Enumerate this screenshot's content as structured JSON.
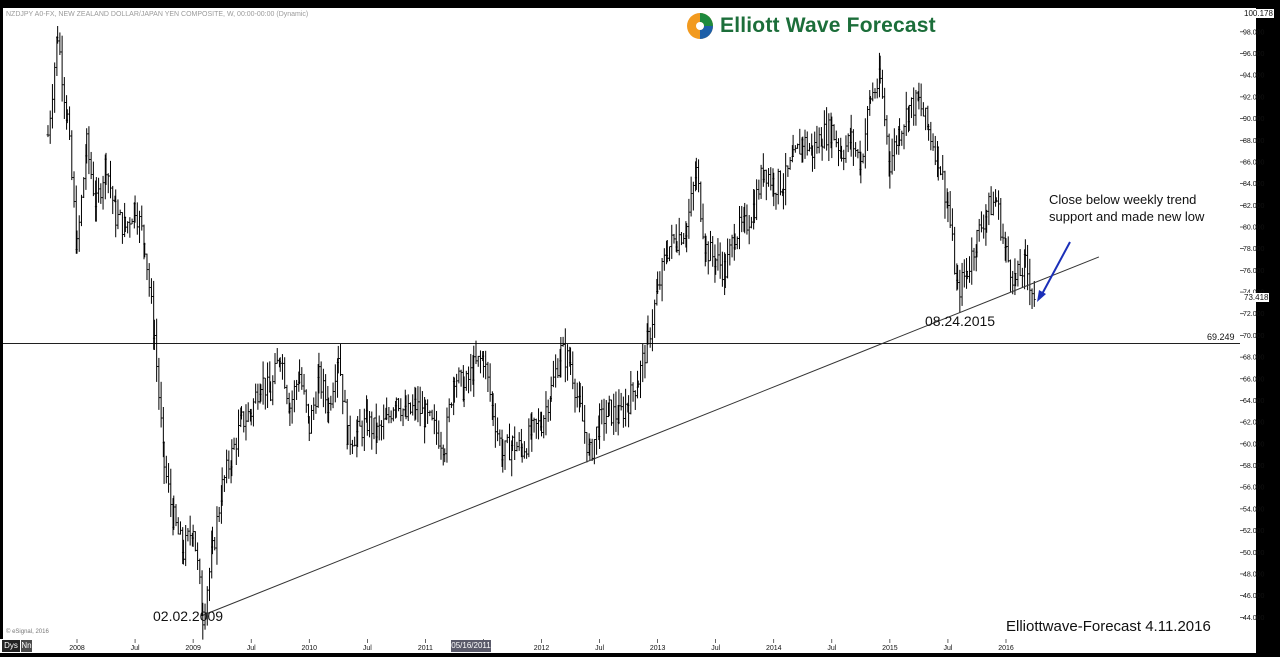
{
  "header": {
    "symbol_line": "NZDJPY A0-FX, NEW ZEALAND DOLLAR/JAPAN YEN COMPOSITE, W, 00:00-00:00 (Dynamic)",
    "brand_name": "Elliott Wave Forecast",
    "brand_colors": [
      "#1e8a3e",
      "#1d5fa8",
      "#f29a1f"
    ]
  },
  "footer": {
    "watermark": "© eSignal, 2016",
    "signature": "Elliottwave-Forecast 4.11.2016",
    "interval_tab": "Dys",
    "interval_btn": "Nn",
    "cursor_date": "05/16/2011"
  },
  "chart_data": {
    "type": "ohlc-bar",
    "title": "NZDJPY A0-FX, NEW ZEALAND DOLLAR/JAPAN YEN COMPOSITE, W, 00:00-00:00 (Dynamic)",
    "x_ticks": [
      "2008",
      "Jul",
      "2009",
      "Jul",
      "2010",
      "Jul",
      "2011",
      "Jul",
      "2012",
      "Jul",
      "2013",
      "Jul",
      "2014",
      "Jul",
      "2015",
      "Jul",
      "2016"
    ],
    "y_ticks": [
      "44.000",
      "46.000",
      "48.000",
      "50.000",
      "52.000",
      "54.000",
      "56.000",
      "58.000",
      "60.000",
      "62.000",
      "64.000",
      "66.000",
      "68.000",
      "70.000",
      "72.000",
      "74.000",
      "76.000",
      "78.000",
      "80.000",
      "82.000",
      "84.000",
      "86.000",
      "88.000",
      "90.000",
      "92.000",
      "94.000",
      "96.000",
      "98.000"
    ],
    "ylim": [
      42.0,
      100.2
    ],
    "last_price": "73.418",
    "top_price": "100.178",
    "horizontal_level": {
      "label": "69.249",
      "value": 69.249
    },
    "trendline": {
      "from": [
        "2009-02-02",
        44.2
      ],
      "to_label": "extended",
      "through": [
        "2015-08-24",
        72.3
      ]
    },
    "price_path_anchors": [
      [
        "2007-10",
        88.5
      ],
      [
        "2007-11",
        97.8
      ],
      [
        "2007-12",
        90.0
      ],
      [
        "2008-01",
        78.0
      ],
      [
        "2008-02",
        87.5
      ],
      [
        "2008-03",
        82.0
      ],
      [
        "2008-04",
        86.0
      ],
      [
        "2008-05",
        81.0
      ],
      [
        "2008-06",
        80.0
      ],
      [
        "2008-07",
        82.0
      ],
      [
        "2008-08",
        78.5
      ],
      [
        "2008-09",
        70.0
      ],
      [
        "2008-10",
        58.0
      ],
      [
        "2008-11",
        53.0
      ],
      [
        "2008-12",
        50.0
      ],
      [
        "2009-01",
        52.5
      ],
      [
        "2009-02",
        44.2
      ],
      [
        "2009-03",
        50.0
      ],
      [
        "2009-04",
        56.0
      ],
      [
        "2009-05",
        59.0
      ],
      [
        "2009-06",
        62.0
      ],
      [
        "2009-07",
        63.0
      ],
      [
        "2009-08",
        66.0
      ],
      [
        "2009-09",
        64.5
      ],
      [
        "2009-10",
        68.5
      ],
      [
        "2009-11",
        63.5
      ],
      [
        "2009-12",
        66.5
      ],
      [
        "2010-01",
        61.5
      ],
      [
        "2010-02",
        66.0
      ],
      [
        "2010-03",
        63.5
      ],
      [
        "2010-04",
        68.5
      ],
      [
        "2010-05",
        60.5
      ],
      [
        "2010-06",
        61.0
      ],
      [
        "2010-07",
        62.0
      ],
      [
        "2010-08",
        61.0
      ],
      [
        "2010-09",
        62.0
      ],
      [
        "2010-10",
        64.5
      ],
      [
        "2010-11",
        62.5
      ],
      [
        "2010-12",
        63.5
      ],
      [
        "2011-01",
        62.5
      ],
      [
        "2011-03",
        60.0
      ],
      [
        "2011-04",
        66.5
      ],
      [
        "2011-05",
        65.0
      ],
      [
        "2011-06",
        67.0
      ],
      [
        "2011-07",
        68.0
      ],
      [
        "2011-08",
        63.0
      ],
      [
        "2011-09",
        59.0
      ],
      [
        "2011-10",
        60.0
      ],
      [
        "2011-11",
        59.5
      ],
      [
        "2011-12",
        61.0
      ],
      [
        "2012-01",
        62.0
      ],
      [
        "2012-02",
        65.0
      ],
      [
        "2012-03",
        68.5
      ],
      [
        "2012-04",
        67.5
      ],
      [
        "2012-05",
        63.0
      ],
      [
        "2012-06",
        59.0
      ],
      [
        "2012-07",
        62.0
      ],
      [
        "2012-08",
        63.0
      ],
      [
        "2012-09",
        62.5
      ],
      [
        "2012-10",
        64.0
      ],
      [
        "2012-11",
        66.0
      ],
      [
        "2012-12",
        69.5
      ],
      [
        "2013-01",
        74.0
      ],
      [
        "2013-02",
        78.0
      ],
      [
        "2013-03",
        79.0
      ],
      [
        "2013-04",
        80.0
      ],
      [
        "2013-05",
        85.0
      ],
      [
        "2013-06",
        78.0
      ],
      [
        "2013-07",
        77.0
      ],
      [
        "2013-08",
        76.0
      ],
      [
        "2013-09",
        79.5
      ],
      [
        "2013-10",
        80.0
      ],
      [
        "2013-11",
        82.0
      ],
      [
        "2013-12",
        85.5
      ],
      [
        "2014-01",
        84.0
      ],
      [
        "2014-02",
        84.0
      ],
      [
        "2014-03",
        86.0
      ],
      [
        "2014-04",
        88.0
      ],
      [
        "2014-05",
        87.0
      ],
      [
        "2014-06",
        88.5
      ],
      [
        "2014-07",
        89.0
      ],
      [
        "2014-08",
        87.0
      ],
      [
        "2014-09",
        88.0
      ],
      [
        "2014-10",
        86.0
      ],
      [
        "2014-11",
        92.0
      ],
      [
        "2014-12",
        93.5
      ],
      [
        "2015-01",
        86.0
      ],
      [
        "2015-02",
        89.0
      ],
      [
        "2015-03",
        91.0
      ],
      [
        "2015-04",
        91.5
      ],
      [
        "2015-05",
        89.0
      ],
      [
        "2015-06",
        86.5
      ],
      [
        "2015-07",
        82.0
      ],
      [
        "2015-08",
        74.0
      ],
      [
        "2015-09",
        76.0
      ],
      [
        "2015-10",
        79.0
      ],
      [
        "2015-11",
        81.5
      ],
      [
        "2015-12",
        82.5
      ],
      [
        "2016-01",
        77.5
      ],
      [
        "2016-02",
        75.0
      ],
      [
        "2016-03",
        76.5
      ],
      [
        "2016-04",
        73.4
      ]
    ]
  },
  "annotations": {
    "low_2009": "02.02.2009",
    "low_2015": "08.24.2015",
    "note_line1": "Close below weekly trend",
    "note_line2": "support and made new low"
  }
}
